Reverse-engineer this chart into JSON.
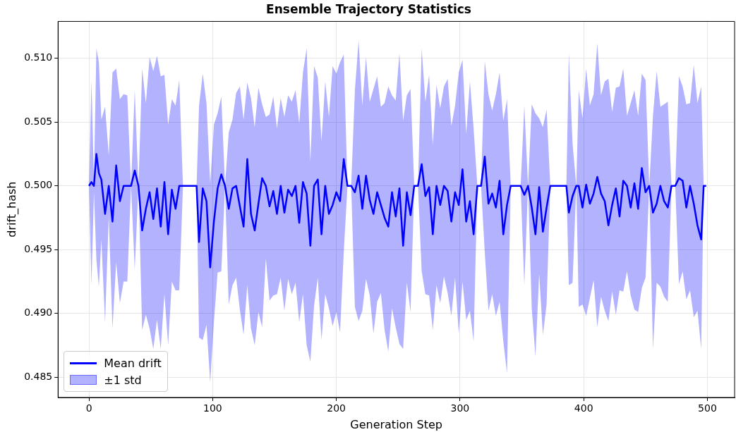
{
  "chart_data": {
    "type": "line",
    "title": "Ensemble Trajectory Statistics",
    "xlabel": "Generation Step",
    "ylabel": "drift_hash",
    "xlim": [
      -25,
      522
    ],
    "xticks": [
      0,
      100,
      200,
      300,
      400,
      500
    ],
    "ylim": [
      0.4834,
      0.5129
    ],
    "yticks": [
      0.485,
      {
        "value": 0.49,
        "label": "0.490"
      },
      0.495,
      {
        "value": 0.5,
        "label": "0.500"
      },
      0.505,
      {
        "value": 0.51,
        "label": "0.510"
      }
    ],
    "grid": true,
    "legend": "bottom left",
    "annotations": [
      "±1 std"
    ],
    "series": [
      {
        "name": "Mean drift",
        "color": "#0000ff",
        "x": [
          0,
          2,
          4,
          6,
          8,
          10,
          13,
          16,
          19,
          22,
          25,
          28,
          31,
          34,
          37,
          40,
          43,
          46,
          49,
          52,
          55,
          58,
          61,
          64,
          67,
          70,
          73,
          76,
          80,
          84,
          87,
          89,
          92,
          95,
          98,
          101,
          104,
          107,
          110,
          113,
          116,
          119,
          122,
          125,
          128,
          131,
          134,
          137,
          140,
          143,
          146,
          149,
          152,
          155,
          158,
          161,
          164,
          167,
          170,
          173,
          176,
          179,
          182,
          185,
          188,
          191,
          194,
          197,
          200,
          203,
          206,
          209,
          212,
          215,
          218,
          221,
          224,
          227,
          230,
          233,
          236,
          239,
          242,
          245,
          248,
          251,
          254,
          257,
          260,
          263,
          266,
          269,
          272,
          275,
          278,
          281,
          284,
          287,
          290,
          293,
          296,
          299,
          302,
          305,
          308,
          311,
          314,
          317,
          320,
          323,
          326,
          329,
          332,
          335,
          338,
          341,
          344,
          349,
          352,
          355,
          358,
          361,
          364,
          367,
          370,
          373,
          378,
          383,
          386,
          388,
          391,
          394,
          396,
          399,
          402,
          405,
          408,
          411,
          414,
          417,
          420,
          423,
          426,
          429,
          432,
          435,
          438,
          441,
          444,
          447,
          450,
          453,
          456,
          459,
          462,
          465,
          468,
          471,
          474,
          477,
          480,
          483,
          486,
          489,
          492,
          495,
          497,
          499
        ],
        "values": [
          0.5,
          0.5003,
          0.5,
          0.5025,
          0.501,
          0.5005,
          0.4978,
          0.5,
          0.4972,
          0.5016,
          0.4988,
          0.5,
          0.5,
          0.5,
          0.5012,
          0.5,
          0.4965,
          0.4982,
          0.4995,
          0.4974,
          0.4998,
          0.4968,
          0.5003,
          0.4962,
          0.4997,
          0.4982,
          0.5,
          0.5,
          0.5,
          0.5,
          0.5,
          0.4956,
          0.4998,
          0.4988,
          0.4936,
          0.4972,
          0.4998,
          0.5009,
          0.5,
          0.4982,
          0.4998,
          0.5,
          0.4984,
          0.4968,
          0.5021,
          0.4978,
          0.4965,
          0.4986,
          0.5006,
          0.5,
          0.4984,
          0.4996,
          0.4978,
          0.5,
          0.4979,
          0.4997,
          0.4992,
          0.5,
          0.4971,
          0.5003,
          0.4994,
          0.4953,
          0.5,
          0.5005,
          0.4962,
          0.5,
          0.4978,
          0.4985,
          0.4995,
          0.4988,
          0.5021,
          0.5,
          0.5,
          0.4995,
          0.5008,
          0.4982,
          0.5008,
          0.4989,
          0.4978,
          0.4995,
          0.4985,
          0.4975,
          0.4968,
          0.4995,
          0.4976,
          0.4998,
          0.4953,
          0.4995,
          0.4977,
          0.5,
          0.5,
          0.5017,
          0.4992,
          0.4999,
          0.4962,
          0.5,
          0.4985,
          0.5,
          0.4996,
          0.4972,
          0.4995,
          0.4985,
          0.5013,
          0.4972,
          0.4988,
          0.4962,
          0.5,
          0.5,
          0.5023,
          0.4986,
          0.4994,
          0.4983,
          0.5004,
          0.4962,
          0.4985,
          0.5,
          0.5,
          0.5,
          0.4993,
          0.5,
          0.4983,
          0.4962,
          0.4999,
          0.4964,
          0.4983,
          0.5,
          0.5,
          0.5,
          0.5,
          0.4979,
          0.4992,
          0.5,
          0.5,
          0.4983,
          0.5001,
          0.4986,
          0.4994,
          0.5007,
          0.4994,
          0.4988,
          0.4969,
          0.4985,
          0.4998,
          0.4976,
          0.5004,
          0.5,
          0.4983,
          0.5002,
          0.4982,
          0.5014,
          0.4995,
          0.5,
          0.4979,
          0.4986,
          0.5,
          0.4988,
          0.4983,
          0.5,
          0.5,
          0.5006,
          0.5004,
          0.4983,
          0.5,
          0.4986,
          0.4969,
          0.4958,
          0.5,
          0.5
        ],
        "upper": [
          0.5,
          0.5083,
          0.5005,
          0.5108,
          0.5097,
          0.5052,
          0.5062,
          0.5024,
          0.5089,
          0.5092,
          0.5068,
          0.5072,
          0.5071,
          0.5,
          0.5075,
          0.5,
          0.5092,
          0.5065,
          0.5101,
          0.509,
          0.5102,
          0.5086,
          0.5087,
          0.5048,
          0.5068,
          0.5063,
          0.5083,
          0.5,
          0.5,
          0.5,
          0.5,
          0.5063,
          0.5088,
          0.5065,
          0.5002,
          0.5048,
          0.5057,
          0.507,
          0.5,
          0.5042,
          0.5052,
          0.5073,
          0.5078,
          0.5052,
          0.5081,
          0.5069,
          0.5046,
          0.5077,
          0.5064,
          0.5054,
          0.5056,
          0.507,
          0.5045,
          0.5069,
          0.5054,
          0.5071,
          0.5066,
          0.5075,
          0.5049,
          0.5089,
          0.5108,
          0.5019,
          0.5094,
          0.5085,
          0.5035,
          0.5082,
          0.5054,
          0.5094,
          0.5088,
          0.5097,
          0.5103,
          0.5,
          0.5,
          0.5075,
          0.5114,
          0.5063,
          0.5101,
          0.5066,
          0.5076,
          0.5086,
          0.5062,
          0.5065,
          0.5078,
          0.5071,
          0.5067,
          0.5104,
          0.5051,
          0.5071,
          0.5076,
          0.5,
          0.5,
          0.5108,
          0.5066,
          0.5087,
          0.5032,
          0.5079,
          0.5061,
          0.5078,
          0.5084,
          0.5047,
          0.5063,
          0.5089,
          0.5099,
          0.5041,
          0.5082,
          0.5045,
          0.5,
          0.5,
          0.5098,
          0.5072,
          0.5059,
          0.5072,
          0.5089,
          0.5051,
          0.5068,
          0.5,
          0.5,
          0.5,
          0.5063,
          0.5,
          0.5064,
          0.5057,
          0.5053,
          0.5046,
          0.506,
          0.5,
          0.5,
          0.5,
          0.5,
          0.5104,
          0.5033,
          0.5,
          0.5075,
          0.5053,
          0.5092,
          0.5063,
          0.5072,
          0.5112,
          0.5071,
          0.5082,
          0.5084,
          0.5058,
          0.5077,
          0.5078,
          0.5092,
          0.5055,
          0.5065,
          0.5075,
          0.5055,
          0.5088,
          0.5083,
          0.5,
          0.5055,
          0.509,
          0.5062,
          0.5064,
          0.5066,
          0.5,
          0.5,
          0.5086,
          0.5078,
          0.5064,
          0.5065,
          0.5095,
          0.5065,
          0.5078,
          0.5,
          0.5
        ],
        "lower": [
          0.5,
          0.4922,
          0.4995,
          0.4942,
          0.4921,
          0.4958,
          0.4893,
          0.4976,
          0.4888,
          0.494,
          0.4908,
          0.4925,
          0.4925,
          0.5,
          0.4934,
          0.5,
          0.4887,
          0.4899,
          0.4888,
          0.4872,
          0.4895,
          0.4872,
          0.4915,
          0.4875,
          0.4925,
          0.4918,
          0.4918,
          0.5,
          0.5,
          0.5,
          0.5,
          0.4881,
          0.4879,
          0.4891,
          0.4846,
          0.4893,
          0.4932,
          0.4933,
          0.5,
          0.4907,
          0.4922,
          0.4928,
          0.4903,
          0.4883,
          0.4922,
          0.4888,
          0.4875,
          0.4901,
          0.4889,
          0.4943,
          0.491,
          0.4914,
          0.4915,
          0.4928,
          0.4902,
          0.4927,
          0.4915,
          0.4924,
          0.4893,
          0.4915,
          0.4875,
          0.4862,
          0.4906,
          0.4928,
          0.4879,
          0.4915,
          0.4904,
          0.489,
          0.4901,
          0.4885,
          0.4948,
          0.5,
          0.5,
          0.4905,
          0.4894,
          0.4902,
          0.4927,
          0.4914,
          0.4884,
          0.4909,
          0.4916,
          0.4887,
          0.487,
          0.4904,
          0.4889,
          0.4876,
          0.4872,
          0.4924,
          0.4901,
          0.5,
          0.5,
          0.4933,
          0.4915,
          0.4914,
          0.4887,
          0.4922,
          0.4908,
          0.4929,
          0.4916,
          0.4898,
          0.4928,
          0.4884,
          0.4925,
          0.4895,
          0.4902,
          0.4878,
          0.5,
          0.5,
          0.4948,
          0.4902,
          0.4915,
          0.4898,
          0.4909,
          0.4878,
          0.4853,
          0.5,
          0.5,
          0.5,
          0.4922,
          0.5,
          0.4904,
          0.4866,
          0.4931,
          0.4883,
          0.4907,
          0.5,
          0.5,
          0.5,
          0.5,
          0.4922,
          0.4924,
          0.5,
          0.4905,
          0.4907,
          0.4898,
          0.4912,
          0.4926,
          0.4889,
          0.4913,
          0.4902,
          0.4894,
          0.4917,
          0.4899,
          0.4918,
          0.4917,
          0.4933,
          0.4914,
          0.4903,
          0.4901,
          0.492,
          0.4928,
          0.5,
          0.4872,
          0.4924,
          0.4921,
          0.4913,
          0.4909,
          0.5,
          0.5,
          0.4923,
          0.4933,
          0.4911,
          0.4918,
          0.4897,
          0.4902,
          0.4872,
          0.5,
          0.5
        ]
      }
    ]
  }
}
